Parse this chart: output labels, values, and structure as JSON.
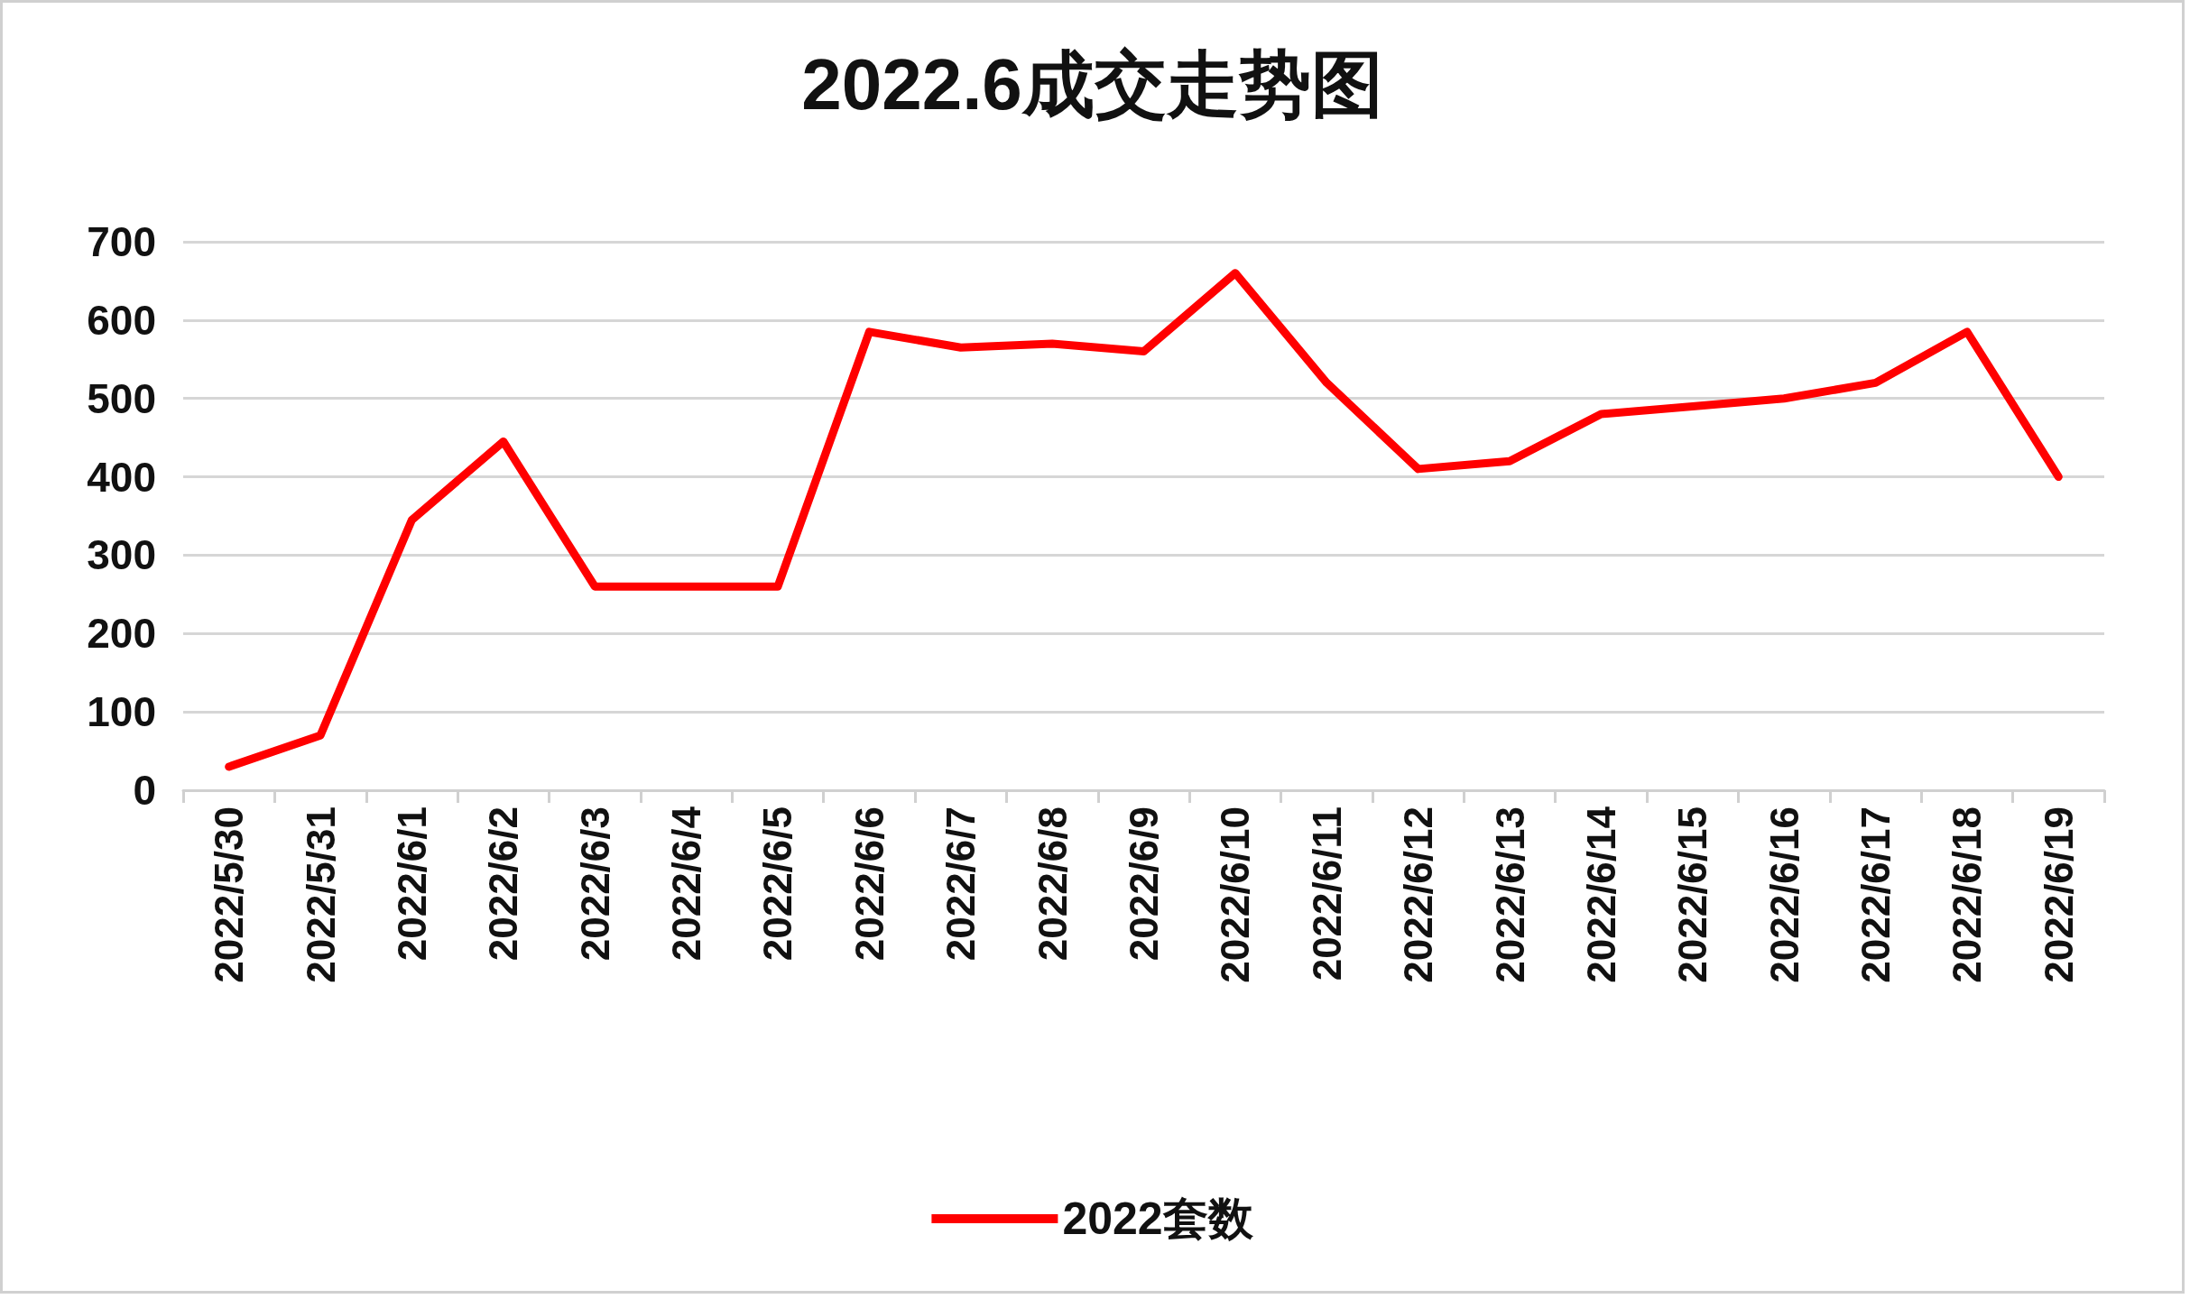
{
  "chart_data": {
    "type": "line",
    "title": "2022.6成交走势图",
    "categories": [
      "2022/5/30",
      "2022/5/31",
      "2022/6/1",
      "2022/6/2",
      "2022/6/3",
      "2022/6/4",
      "2022/6/5",
      "2022/6/6",
      "2022/6/7",
      "2022/6/8",
      "2022/6/9",
      "2022/6/10",
      "2022/6/11",
      "2022/6/12",
      "2022/6/13",
      "2022/6/14",
      "2022/6/15",
      "2022/6/16",
      "2022/6/17",
      "2022/6/18",
      "2022/6/19"
    ],
    "series": [
      {
        "name": "2022套数",
        "color": "#ff0000",
        "values": [
          30,
          70,
          345,
          445,
          260,
          260,
          260,
          585,
          565,
          570,
          560,
          660,
          520,
          410,
          420,
          480,
          490,
          500,
          520,
          585,
          400
        ]
      }
    ],
    "ylim": [
      0,
      700
    ],
    "yticks": [
      0,
      100,
      200,
      300,
      400,
      500,
      600,
      700
    ],
    "grid": "y",
    "legend": "bottom",
    "marker": "none",
    "line_style": "solid"
  }
}
